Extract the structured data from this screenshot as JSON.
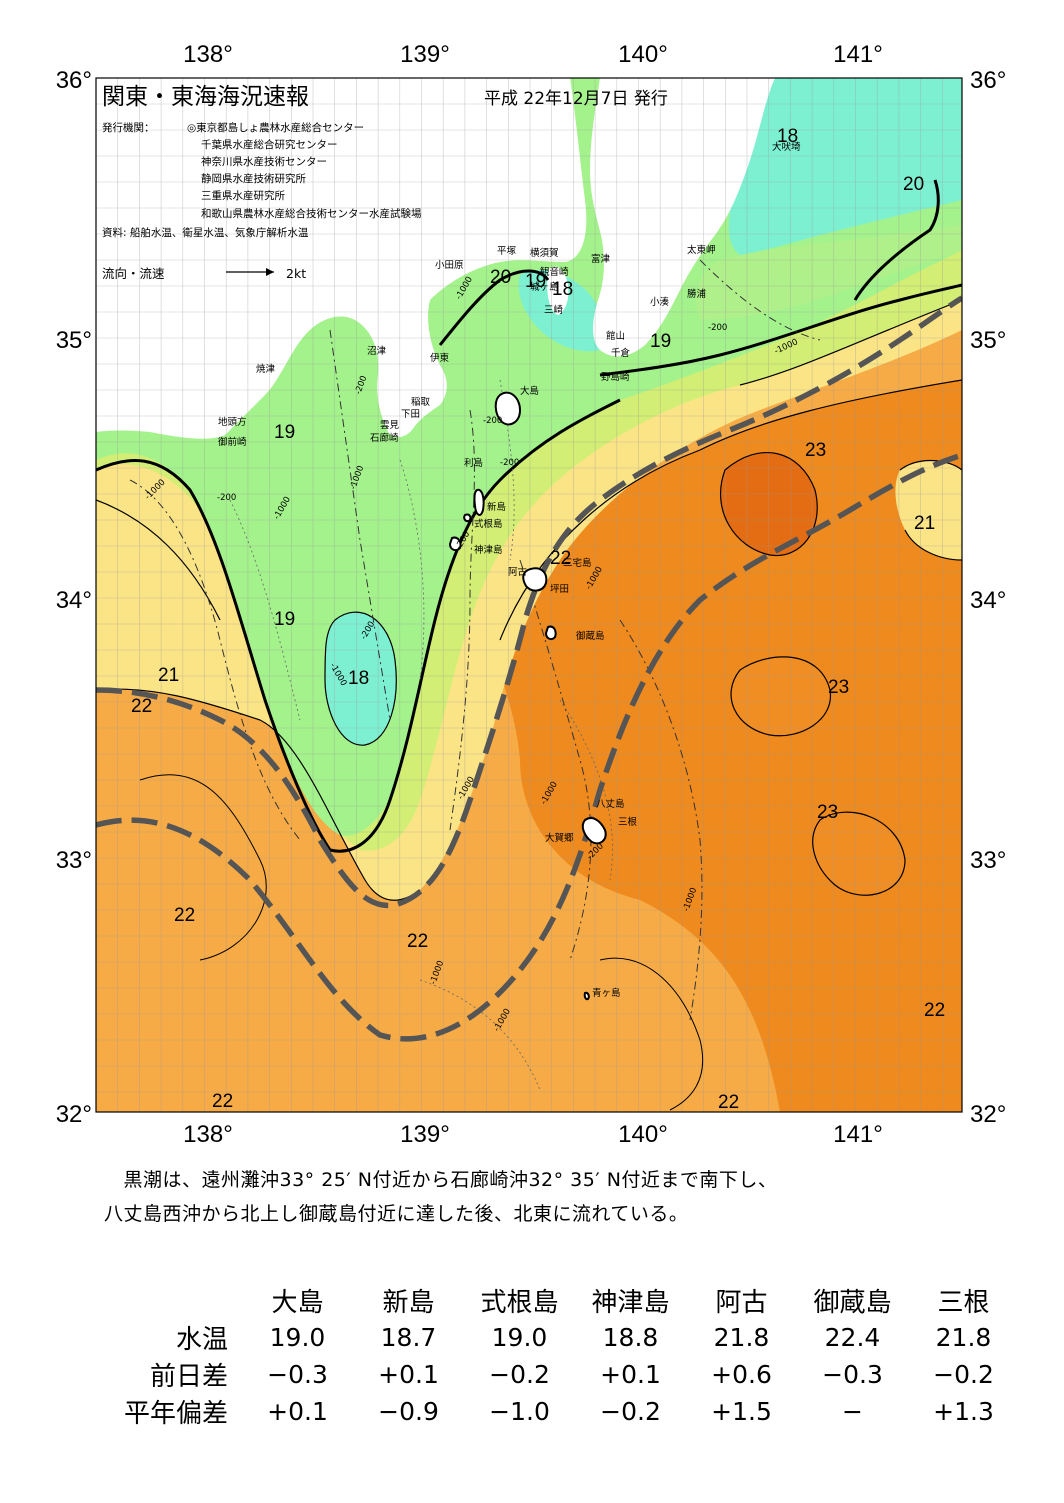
{
  "header": {
    "title": "関東・東海海況速報",
    "date": "平成 22年12月7日 発行",
    "publisher_label": "発行機関：",
    "publishers": [
      "◎東京都島しょ農林水産総合センター",
      "千葉県水産総合研究センター",
      "神奈川県水産技術センター",
      "静岡県水産技術研究所",
      "三重県水産研究所",
      "和歌山県農林水産総合技術センター水産試験場"
    ],
    "source": "資料: 船舶水温、衛星水温、気象庁解析水温",
    "current_legend": "流向・流速",
    "current_scale": "2kt"
  },
  "axes": {
    "lon_labels": [
      "138°",
      "139°",
      "140°",
      "141°"
    ],
    "lat_labels": [
      "36°",
      "35°",
      "34°",
      "33°",
      "32°"
    ]
  },
  "isotherm_labels": [
    "18",
    "20",
    "20",
    "19",
    "18",
    "19",
    "19",
    "23",
    "21",
    "19",
    "22",
    "21",
    "22",
    "18",
    "23",
    "23",
    "22",
    "22",
    "22",
    "22",
    "22"
  ],
  "place_names": [
    "大吠埼",
    "太東岬",
    "勝浦",
    "小湊",
    "富津",
    "横須賀",
    "観音崎",
    "平塚",
    "小田原",
    "城ヶ島",
    "三崎",
    "館山",
    "千倉",
    "野島崎",
    "沼津",
    "伊東",
    "焼津",
    "稲取",
    "下田",
    "雲見",
    "石廊崎",
    "地頭方",
    "御前崎",
    "大島",
    "利島",
    "新島",
    "式根島",
    "神津島",
    "三宅島",
    "阿古",
    "坪田",
    "御蔵島",
    "八丈島",
    "三根",
    "大賀郷",
    "青ヶ島"
  ],
  "depth_labels": [
    "-1000",
    "-200",
    "-1000",
    "-200",
    "-1000",
    "-200",
    "-200",
    "-1000",
    "-200",
    "-1000",
    "-200",
    "-1000",
    "-200",
    "-1000",
    "-1000",
    "-200",
    "-1000",
    "-1000",
    "-1000",
    "-1000"
  ],
  "summary": [
    "　黒潮は、遠州灘沖33° 25′ N付近から石廊崎沖32° 35′ N付近まで南下し、",
    "八丈島西沖から北上し御蔵島付近に達した後、北東に流れている。"
  ],
  "stats": {
    "columns": [
      "大島",
      "新島",
      "式根島",
      "神津島",
      "阿古",
      "御蔵島",
      "三根"
    ],
    "rows": [
      {
        "label": "水温",
        "values": [
          "19.0",
          "18.7",
          "19.0",
          "18.8",
          "21.8",
          "22.4",
          "21.8"
        ]
      },
      {
        "label": "前日差",
        "values": [
          "−0.3",
          "+0.1",
          "−0.2",
          "+0.1",
          "+0.6",
          "−0.3",
          "−0.2"
        ]
      },
      {
        "label": "平年偏差",
        "values": [
          "+0.1",
          "−0.9",
          "−1.0",
          "−0.2",
          "+1.5",
          "−",
          "+1.3"
        ]
      }
    ]
  },
  "colors": {
    "t18": "#7ef0d2",
    "t19": "#a4f28c",
    "t20": "#d2ee74",
    "t21": "#fbe486",
    "t22": "#f6ab46",
    "t23": "#ee8a1e",
    "t23_core": "#e46d14",
    "land": "#ffffff",
    "kuroshio_axis": "#555555"
  }
}
